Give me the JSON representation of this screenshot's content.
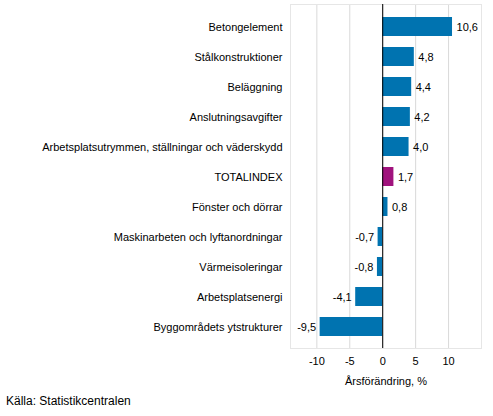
{
  "chart_data": {
    "type": "bar",
    "orientation": "horizontal",
    "categories": [
      "Betongelement",
      "Stålkonstruktioner",
      "Beläggning",
      "Anslutningsavgifter",
      "Arbetsplatsutrymmen, ställningar och väderskydd",
      "TOTALINDEX",
      "Fönster och dörrar",
      "Maskinarbeten och lyftanordningar",
      "Värmeisoleringar",
      "Arbetsplatsenergi",
      "Byggområdets ytstrukturer"
    ],
    "values": [
      10.6,
      4.8,
      4.4,
      4.2,
      4.0,
      1.7,
      0.8,
      -0.7,
      -0.8,
      -4.1,
      -9.5
    ],
    "value_labels": [
      "10,6",
      "4,8",
      "4,4",
      "4,2",
      "4,0",
      "1,7",
      "0,8",
      "-0,7",
      "-0,8",
      "-4,1",
      "-9,5"
    ],
    "colors": [
      "#0073b0",
      "#0073b0",
      "#0073b0",
      "#0073b0",
      "#0073b0",
      "#a0127d",
      "#0073b0",
      "#0073b0",
      "#0073b0",
      "#0073b0",
      "#0073b0"
    ],
    "data_labels": true,
    "grid": true,
    "xlim": [
      -14,
      15
    ],
    "xticks": [
      -10,
      -5,
      0,
      5,
      10
    ],
    "xlabel": "Årsförändring, %",
    "caption": "Källa: Statistikcentralen"
  }
}
